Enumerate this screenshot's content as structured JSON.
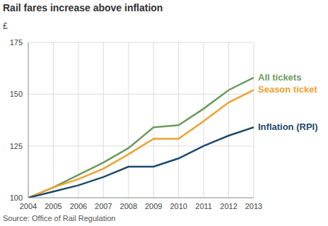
{
  "chart_data": {
    "type": "line",
    "title": "Rail fares increase above inflation",
    "y_label": "£",
    "source": "Source: Office of Rail Regulation",
    "x": [
      2004,
      2005,
      2006,
      2007,
      2008,
      2009,
      2010,
      2011,
      2012,
      2013
    ],
    "xlim": [
      2004,
      2013
    ],
    "xticks": [
      2004,
      2005,
      2006,
      2007,
      2008,
      2009,
      2010,
      2011,
      2012,
      2013
    ],
    "ylim": [
      100,
      175
    ],
    "yticks": [
      100,
      125,
      150,
      175
    ],
    "grid": true,
    "series": [
      {
        "name": "All tickets",
        "color": "#6c9a5e",
        "values": [
          100,
          105,
          111,
          117,
          124,
          134,
          135,
          143,
          152,
          158
        ]
      },
      {
        "name": "Season ticket",
        "color": "#f0a030",
        "values": [
          100,
          105,
          109,
          114,
          121,
          128.5,
          128.5,
          137,
          146,
          152
        ]
      },
      {
        "name": "Inflation (RPI)",
        "color": "#1d4a6b",
        "values": [
          100,
          103,
          106,
          110,
          115,
          115,
          119,
          125,
          130,
          134
        ]
      }
    ]
  }
}
